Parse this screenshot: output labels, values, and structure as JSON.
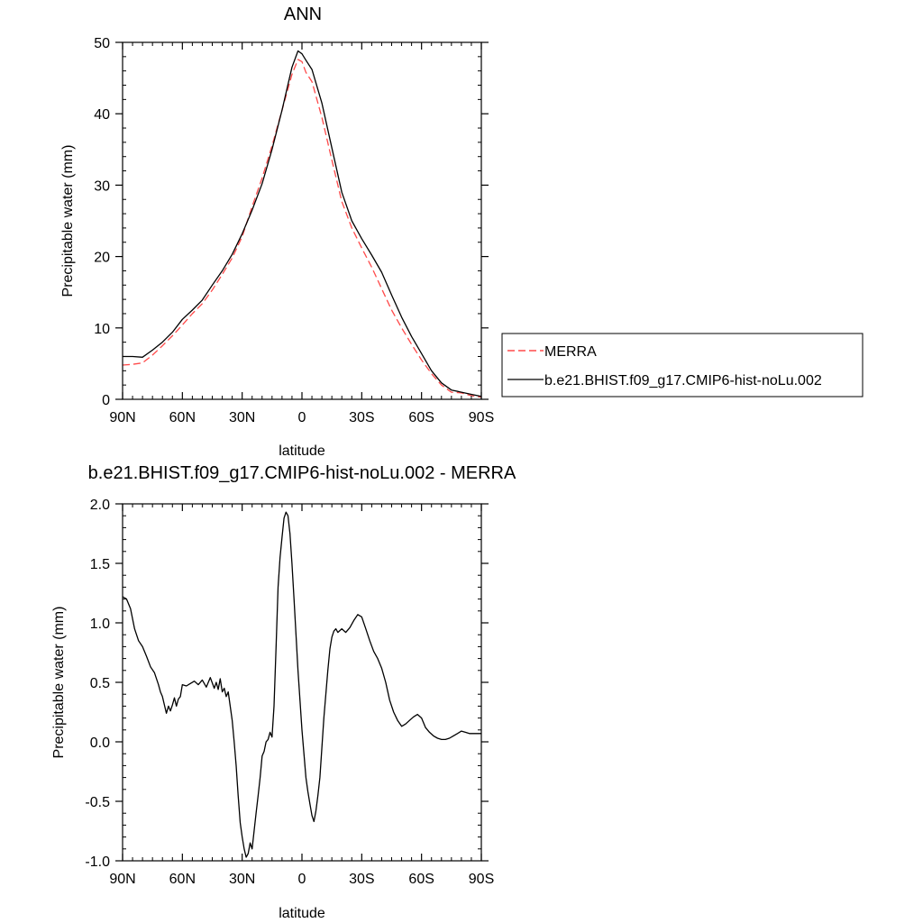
{
  "chart_data": [
    {
      "type": "line",
      "title": "ANN",
      "xlabel": "latitude",
      "ylabel": "Precipitable water (mm)",
      "xlim": [
        90,
        -90
      ],
      "ylim": [
        0,
        50
      ],
      "x_ticks": [
        90,
        60,
        30,
        0,
        -30,
        -60,
        -90
      ],
      "x_tick_labels": [
        "90N",
        "60N",
        "30N",
        "0",
        "30S",
        "60S",
        "90S"
      ],
      "y_ticks": [
        0,
        10,
        20,
        30,
        40,
        50
      ],
      "y_tick_labels": [
        "0",
        "10",
        "20",
        "30",
        "40",
        "50"
      ],
      "legend_position": "right",
      "series": [
        {
          "name": "MERRA",
          "color": "#ff4a4a",
          "dash": "dashed",
          "x": [
            90,
            85,
            80,
            75,
            70,
            65,
            60,
            55,
            50,
            45,
            40,
            35,
            30,
            25,
            20,
            15,
            10,
            5,
            2,
            0,
            -2,
            -5,
            -10,
            -15,
            -20,
            -25,
            -30,
            -35,
            -40,
            -45,
            -50,
            -55,
            -60,
            -65,
            -70,
            -75,
            -80,
            -85,
            -90
          ],
          "y": [
            4.8,
            4.9,
            5.1,
            6.2,
            7.5,
            8.9,
            10.4,
            12.0,
            13.4,
            15.3,
            17.5,
            19.8,
            22.8,
            27.0,
            31.0,
            35.5,
            40.5,
            45.5,
            47.6,
            47.3,
            45.8,
            44.5,
            39.5,
            33.5,
            27.7,
            24.0,
            21.2,
            18.5,
            15.5,
            12.5,
            10.0,
            7.7,
            5.5,
            3.6,
            2.0,
            1.0,
            0.9,
            0.5,
            0.3
          ]
        },
        {
          "name": "b.e21.BHIST.f09_g17.CMIP6-hist-noLu.002",
          "color": "#000000",
          "dash": "solid",
          "x": [
            90,
            85,
            80,
            75,
            70,
            65,
            60,
            55,
            50,
            45,
            40,
            35,
            30,
            25,
            20,
            15,
            10,
            5,
            2,
            0,
            -2,
            -5,
            -10,
            -15,
            -20,
            -25,
            -30,
            -35,
            -40,
            -45,
            -50,
            -55,
            -60,
            -65,
            -70,
            -75,
            -80,
            -85,
            -90
          ],
          "y": [
            6.0,
            6.0,
            5.9,
            6.9,
            8.0,
            9.4,
            11.2,
            12.5,
            13.9,
            16.0,
            18.0,
            20.3,
            23.2,
            26.5,
            30.2,
            35.0,
            40.5,
            46.5,
            48.8,
            48.4,
            47.5,
            46.2,
            41.5,
            35.2,
            29.0,
            25.0,
            22.5,
            20.2,
            17.8,
            14.6,
            11.5,
            8.8,
            6.4,
            4.0,
            2.3,
            1.3,
            1.0,
            0.7,
            0.4
          ]
        }
      ]
    },
    {
      "type": "line",
      "title": "b.e21.BHIST.f09_g17.CMIP6-hist-noLu.002 - MERRA",
      "xlabel": "latitude",
      "ylabel": "Precipitable water (mm)",
      "xlim": [
        90,
        -90
      ],
      "ylim": [
        -1.0,
        2.0
      ],
      "x_ticks": [
        90,
        60,
        30,
        0,
        -30,
        -60,
        -90
      ],
      "x_tick_labels": [
        "90N",
        "60N",
        "30N",
        "0",
        "30S",
        "60S",
        "90S"
      ],
      "y_ticks": [
        -1.0,
        -0.5,
        0.0,
        0.5,
        1.0,
        1.5,
        2.0
      ],
      "y_tick_labels": [
        "-1.0",
        "-0.5",
        "0.0",
        "0.5",
        "1.0",
        "1.5",
        "2.0"
      ],
      "series": [
        {
          "color": "#000000",
          "dash": "solid",
          "x": [
            90,
            88,
            86,
            84,
            82,
            80,
            78,
            76,
            74,
            72,
            71,
            70,
            69,
            68,
            67,
            66,
            65,
            64,
            63,
            62,
            61,
            60,
            58,
            56,
            54,
            52,
            50,
            48,
            46,
            44,
            43,
            42,
            41,
            40,
            39,
            38,
            37,
            36,
            35,
            34,
            33,
            32,
            31,
            30,
            29,
            28,
            27,
            26,
            25,
            24,
            23,
            22,
            21,
            20,
            19,
            18,
            17,
            16,
            15,
            14,
            13,
            12,
            11,
            10,
            9,
            8,
            7,
            6,
            5,
            4,
            3,
            2,
            1,
            0,
            -1,
            -2,
            -3,
            -4,
            -5,
            -6,
            -7,
            -8,
            -9,
            -10,
            -11,
            -12,
            -13,
            -14,
            -15,
            -16,
            -17,
            -18,
            -20,
            -22,
            -24,
            -26,
            -28,
            -30,
            -32,
            -34,
            -36,
            -38,
            -40,
            -42,
            -44,
            -46,
            -48,
            -50,
            -52,
            -54,
            -56,
            -58,
            -60,
            -62,
            -64,
            -66,
            -68,
            -70,
            -72,
            -74,
            -76,
            -78,
            -80,
            -82,
            -84,
            -86,
            -88,
            -90
          ],
          "y": [
            1.22,
            1.2,
            1.12,
            0.95,
            0.85,
            0.8,
            0.72,
            0.63,
            0.58,
            0.48,
            0.42,
            0.38,
            0.31,
            0.24,
            0.3,
            0.26,
            0.31,
            0.37,
            0.3,
            0.36,
            0.38,
            0.48,
            0.47,
            0.49,
            0.51,
            0.48,
            0.52,
            0.46,
            0.54,
            0.45,
            0.5,
            0.44,
            0.53,
            0.42,
            0.45,
            0.38,
            0.42,
            0.3,
            0.18,
            0.0,
            -0.2,
            -0.45,
            -0.68,
            -0.8,
            -0.9,
            -0.97,
            -0.94,
            -0.85,
            -0.9,
            -0.75,
            -0.6,
            -0.45,
            -0.3,
            -0.12,
            -0.08,
            0.0,
            0.02,
            0.08,
            0.04,
            0.3,
            0.8,
            1.3,
            1.55,
            1.72,
            1.88,
            1.93,
            1.9,
            1.75,
            1.5,
            1.2,
            0.9,
            0.6,
            0.35,
            0.1,
            -0.1,
            -0.3,
            -0.42,
            -0.52,
            -0.62,
            -0.67,
            -0.58,
            -0.45,
            -0.3,
            -0.05,
            0.2,
            0.4,
            0.6,
            0.78,
            0.88,
            0.93,
            0.95,
            0.92,
            0.95,
            0.92,
            0.96,
            1.02,
            1.07,
            1.05,
            0.95,
            0.85,
            0.76,
            0.7,
            0.62,
            0.5,
            0.35,
            0.25,
            0.18,
            0.13,
            0.15,
            0.18,
            0.21,
            0.23,
            0.2,
            0.12,
            0.08,
            0.05,
            0.03,
            0.02,
            0.02,
            0.03,
            0.05,
            0.07,
            0.09,
            0.08,
            0.07,
            0.07,
            0.07,
            0.07
          ]
        }
      ]
    }
  ]
}
